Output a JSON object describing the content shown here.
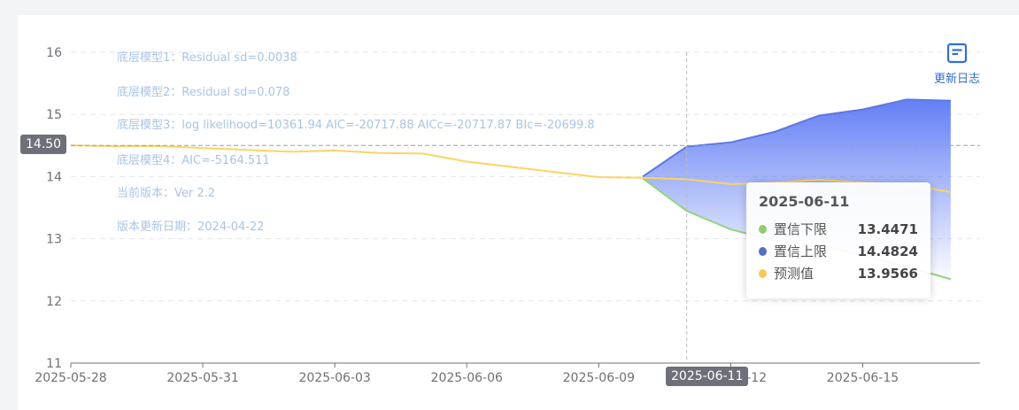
{
  "annotations": [
    "底层模型1：Residual sd=0.0038",
    "底层模型2：Residual sd=0.078",
    "底层模型3：log likelihood=10361.94 AIC=-20717.88 AICc=-20717.87 BIc=-20699.8",
    "底层模型4：AIC=-5164.511",
    "当前版本：Ver 2.2",
    "版本更新日期：2024-04-22"
  ],
  "update_log": {
    "label": "更新日志",
    "icon": "document-icon"
  },
  "axis_pointer": {
    "y_label": "14.50",
    "x_label": "2025-06-11"
  },
  "tooltip": {
    "date": "2025-06-11",
    "rows": [
      {
        "name": "置信下限",
        "value": "13.4471",
        "color": "#91cc75"
      },
      {
        "name": "置信上限",
        "value": "14.4824",
        "color": "#5470c6"
      },
      {
        "name": "预测值",
        "value": "13.9566",
        "color": "#fac858"
      }
    ]
  },
  "chart_data": {
    "type": "line",
    "ylim": [
      11,
      16
    ],
    "yticks": [
      "11",
      "12",
      "13",
      "14",
      "15",
      "16"
    ],
    "xticks": [
      "2025-05-28",
      "2025-05-31",
      "2025-06-03",
      "2025-06-06",
      "2025-06-09",
      "2025-06-12",
      "2025-06-15"
    ],
    "grid": true,
    "x": [
      "2025-05-28",
      "2025-05-29",
      "2025-05-30",
      "2025-06-02",
      "2025-06-03",
      "2025-06-04",
      "2025-06-05",
      "2025-06-06",
      "2025-06-09",
      "2025-06-10",
      "2025-06-11",
      "2025-06-12",
      "2025-06-13",
      "2025-06-14",
      "2025-06-15",
      "2025-06-16",
      "2025-06-17"
    ],
    "series": [
      {
        "name": "预测值",
        "color": "#fcd462",
        "values": [
          14.5,
          14.49,
          14.49,
          14.4,
          14.42,
          14.38,
          14.37,
          14.24,
          13.99,
          13.98,
          13.9566,
          13.88,
          13.9,
          13.95,
          13.9,
          13.88,
          13.75
        ]
      },
      {
        "name": "置信上限",
        "color": "#5b78e0",
        "values": [
          null,
          null,
          null,
          null,
          null,
          null,
          null,
          null,
          null,
          14.0,
          14.4824,
          14.55,
          14.72,
          14.98,
          15.08,
          15.24,
          15.22
        ]
      },
      {
        "name": "置信下限",
        "color": "#91d47e",
        "values": [
          null,
          null,
          null,
          null,
          null,
          null,
          null,
          null,
          null,
          13.97,
          13.4471,
          13.15,
          12.97,
          12.9,
          12.73,
          12.55,
          12.35
        ]
      }
    ]
  }
}
